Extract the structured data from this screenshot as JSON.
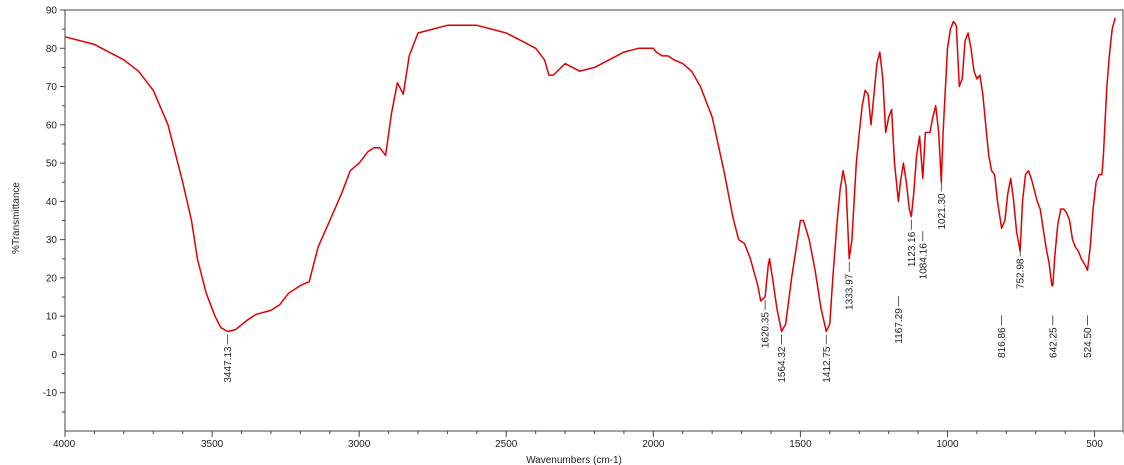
{
  "chart_data": {
    "type": "line",
    "title": "",
    "xlabel": "Wavenumbers (cm-1)",
    "ylabel": "%Transmittance",
    "xlim": [
      4000,
      400
    ],
    "ylim": [
      -20,
      90
    ],
    "x_reversed": true,
    "grid": false,
    "line_color": "#e00000",
    "x_ticks": [
      4000,
      3500,
      3000,
      2500,
      2000,
      1500,
      1000,
      500
    ],
    "y_ticks": [
      -10,
      0,
      10,
      20,
      30,
      40,
      50,
      60,
      70,
      80,
      90
    ],
    "series": [
      {
        "name": "",
        "points": [
          [
            4000,
            83
          ],
          [
            3900,
            81
          ],
          [
            3800,
            77
          ],
          [
            3750,
            74
          ],
          [
            3700,
            69
          ],
          [
            3650,
            60
          ],
          [
            3600,
            45
          ],
          [
            3570,
            35
          ],
          [
            3550,
            25
          ],
          [
            3520,
            16
          ],
          [
            3490,
            10
          ],
          [
            3470,
            7
          ],
          [
            3447,
            6
          ],
          [
            3420,
            6.5
          ],
          [
            3380,
            9
          ],
          [
            3350,
            10.5
          ],
          [
            3300,
            11.5
          ],
          [
            3270,
            13
          ],
          [
            3240,
            16
          ],
          [
            3200,
            18
          ],
          [
            3170,
            19
          ],
          [
            3140,
            28
          ],
          [
            3100,
            35
          ],
          [
            3060,
            42
          ],
          [
            3030,
            48
          ],
          [
            3000,
            50
          ],
          [
            2970,
            53
          ],
          [
            2950,
            54
          ],
          [
            2930,
            54
          ],
          [
            2910,
            52
          ],
          [
            2890,
            63
          ],
          [
            2870,
            71
          ],
          [
            2850,
            68
          ],
          [
            2830,
            78
          ],
          [
            2800,
            84
          ],
          [
            2750,
            85
          ],
          [
            2700,
            86
          ],
          [
            2650,
            86
          ],
          [
            2600,
            86
          ],
          [
            2550,
            85
          ],
          [
            2500,
            84
          ],
          [
            2450,
            82
          ],
          [
            2400,
            80
          ],
          [
            2370,
            77
          ],
          [
            2355,
            73
          ],
          [
            2340,
            73
          ],
          [
            2300,
            76
          ],
          [
            2250,
            74
          ],
          [
            2200,
            75
          ],
          [
            2150,
            77
          ],
          [
            2100,
            79
          ],
          [
            2050,
            80
          ],
          [
            2000,
            80
          ],
          [
            1990,
            79
          ],
          [
            1970,
            78
          ],
          [
            1950,
            78
          ],
          [
            1930,
            77
          ],
          [
            1900,
            76
          ],
          [
            1870,
            74
          ],
          [
            1840,
            70
          ],
          [
            1800,
            62
          ],
          [
            1760,
            48
          ],
          [
            1730,
            36
          ],
          [
            1710,
            30
          ],
          [
            1690,
            29
          ],
          [
            1670,
            25
          ],
          [
            1645,
            18
          ],
          [
            1635,
            14
          ],
          [
            1620,
            15
          ],
          [
            1610,
            23
          ],
          [
            1605,
            25
          ],
          [
            1595,
            20
          ],
          [
            1580,
            12
          ],
          [
            1564,
            6
          ],
          [
            1550,
            8
          ],
          [
            1530,
            20
          ],
          [
            1510,
            30
          ],
          [
            1500,
            35
          ],
          [
            1490,
            35
          ],
          [
            1470,
            30
          ],
          [
            1450,
            22
          ],
          [
            1430,
            12
          ],
          [
            1412,
            6
          ],
          [
            1400,
            8
          ],
          [
            1390,
            20
          ],
          [
            1375,
            35
          ],
          [
            1365,
            43
          ],
          [
            1355,
            48
          ],
          [
            1345,
            44
          ],
          [
            1334,
            25
          ],
          [
            1325,
            30
          ],
          [
            1310,
            50
          ],
          [
            1300,
            58
          ],
          [
            1290,
            65
          ],
          [
            1280,
            69
          ],
          [
            1270,
            68
          ],
          [
            1260,
            60
          ],
          [
            1250,
            68
          ],
          [
            1240,
            76
          ],
          [
            1230,
            79
          ],
          [
            1220,
            72
          ],
          [
            1210,
            58
          ],
          [
            1200,
            62
          ],
          [
            1190,
            64
          ],
          [
            1180,
            50
          ],
          [
            1167,
            40
          ],
          [
            1160,
            45
          ],
          [
            1150,
            50
          ],
          [
            1140,
            45
          ],
          [
            1130,
            38
          ],
          [
            1123,
            36
          ],
          [
            1115,
            42
          ],
          [
            1105,
            52
          ],
          [
            1095,
            57
          ],
          [
            1084,
            46
          ],
          [
            1075,
            58
          ],
          [
            1060,
            58
          ],
          [
            1050,
            62
          ],
          [
            1040,
            65
          ],
          [
            1030,
            58
          ],
          [
            1021,
            45
          ],
          [
            1015,
            58
          ],
          [
            1000,
            80
          ],
          [
            990,
            85
          ],
          [
            980,
            87
          ],
          [
            970,
            86
          ],
          [
            960,
            70
          ],
          [
            950,
            72
          ],
          [
            940,
            82
          ],
          [
            930,
            84
          ],
          [
            920,
            80
          ],
          [
            910,
            74
          ],
          [
            900,
            72
          ],
          [
            890,
            73
          ],
          [
            880,
            68
          ],
          [
            870,
            60
          ],
          [
            860,
            52
          ],
          [
            850,
            48
          ],
          [
            840,
            47
          ],
          [
            830,
            40
          ],
          [
            816,
            33
          ],
          [
            805,
            35
          ],
          [
            795,
            42
          ],
          [
            785,
            46
          ],
          [
            775,
            40
          ],
          [
            765,
            32
          ],
          [
            753,
            27
          ],
          [
            745,
            40
          ],
          [
            735,
            47
          ],
          [
            725,
            48
          ],
          [
            715,
            46
          ],
          [
            705,
            43
          ],
          [
            695,
            40
          ],
          [
            685,
            38
          ],
          [
            675,
            33
          ],
          [
            665,
            28
          ],
          [
            655,
            24
          ],
          [
            645,
            18
          ],
          [
            642,
            18
          ],
          [
            635,
            26
          ],
          [
            625,
            34
          ],
          [
            615,
            38
          ],
          [
            605,
            38
          ],
          [
            595,
            37
          ],
          [
            585,
            35
          ],
          [
            575,
            30
          ],
          [
            565,
            28
          ],
          [
            555,
            27
          ],
          [
            545,
            25
          ],
          [
            530,
            23
          ],
          [
            524,
            22
          ],
          [
            515,
            28
          ],
          [
            505,
            38
          ],
          [
            495,
            45
          ],
          [
            485,
            47
          ],
          [
            475,
            47
          ],
          [
            470,
            52
          ],
          [
            465,
            60
          ],
          [
            458,
            70
          ],
          [
            450,
            78
          ],
          [
            440,
            85
          ],
          [
            430,
            88
          ]
        ]
      }
    ],
    "annotations": [
      {
        "x": 3447,
        "y": 6,
        "label": "3447.13"
      },
      {
        "x": 1620,
        "y": 15,
        "label": "1620.35"
      },
      {
        "x": 1564,
        "y": 6,
        "label": "1564.32"
      },
      {
        "x": 1412,
        "y": 6,
        "label": "1412.75"
      },
      {
        "x": 1334,
        "y": 25,
        "label": "1333.97"
      },
      {
        "x": 1167,
        "y": 16,
        "label": "1167.29"
      },
      {
        "x": 1123,
        "y": 36,
        "label": "1123.16"
      },
      {
        "x": 1084,
        "y": 33,
        "label": "1084.16"
      },
      {
        "x": 1021,
        "y": 46,
        "label": "1021.30"
      },
      {
        "x": 816,
        "y": 11,
        "label": "816.86"
      },
      {
        "x": 753,
        "y": 29,
        "label": "752.98"
      },
      {
        "x": 642,
        "y": 11,
        "label": "642.25"
      },
      {
        "x": 524,
        "y": 11,
        "label": "524.50"
      }
    ]
  }
}
